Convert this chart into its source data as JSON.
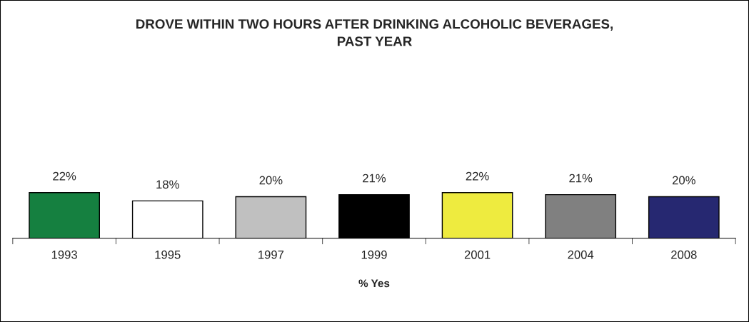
{
  "chart_data": {
    "type": "bar",
    "title": "DROVE WITHIN TWO HOURS AFTER DRINKING ALCOHOLIC BEVERAGES,\nPAST YEAR",
    "xlabel": "% Yes",
    "categories": [
      "1993",
      "1995",
      "1997",
      "1999",
      "2001",
      "2004",
      "2008"
    ],
    "values": [
      22,
      18,
      20,
      21,
      22,
      21,
      20
    ],
    "value_labels": [
      "22%",
      "18%",
      "20%",
      "21%",
      "22%",
      "21%",
      "20%"
    ],
    "colors": [
      "#158040",
      "#ffffff",
      "#c0c0c0",
      "#000000",
      "#eeeb3f",
      "#808080",
      "#262871"
    ],
    "tick_labels": "x",
    "grid": false,
    "legend": false
  }
}
